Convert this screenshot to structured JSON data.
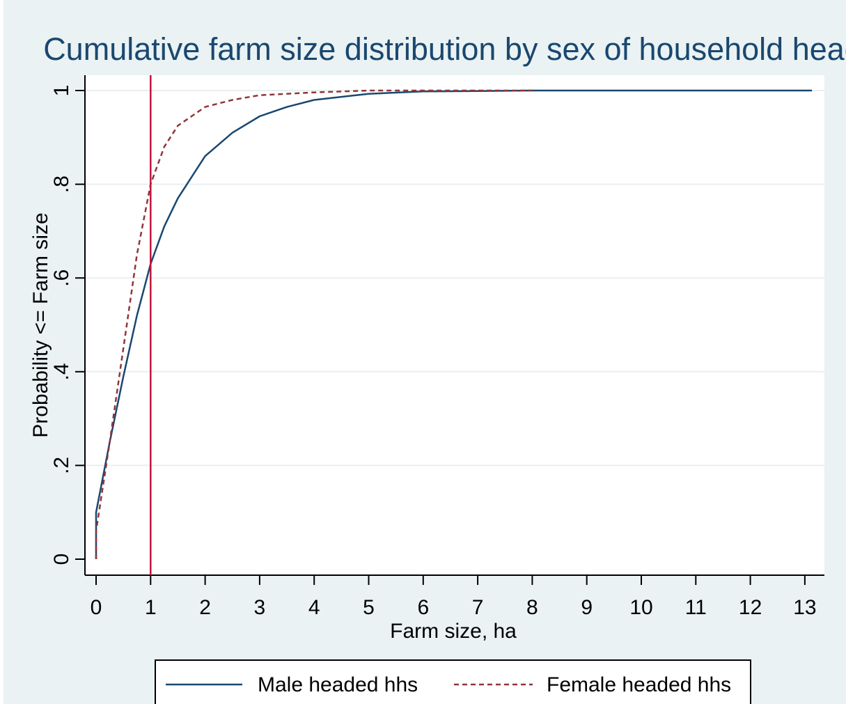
{
  "chart_data": {
    "type": "line",
    "title": "Cumulative farm size distribution by sex of household head",
    "xlabel": "Farm size, ha",
    "ylabel": "Probability <= Farm size",
    "xlim": [
      0,
      13
    ],
    "ylim": [
      0,
      1
    ],
    "x_ticks": [
      "0",
      "1",
      "2",
      "3",
      "4",
      "5",
      "6",
      "7",
      "8",
      "9",
      "10",
      "11",
      "12",
      "13"
    ],
    "y_ticks": [
      "0",
      ".2",
      ".4",
      ".6",
      ".8",
      "1"
    ],
    "grid": true,
    "legend_position": "bottom",
    "reference_line": {
      "x": 1,
      "color": "#c0143c"
    },
    "series": [
      {
        "name": "Male headed hhs",
        "color": "#1a476f",
        "dash": "solid",
        "x": [
          0,
          0,
          0.25,
          0.5,
          0.75,
          1.0,
          1.25,
          1.5,
          2.0,
          2.5,
          3.0,
          3.5,
          4.0,
          5.0,
          6.0,
          7.0,
          8.0,
          10.0,
          13.13
        ],
        "y": [
          0.0,
          0.1,
          0.25,
          0.39,
          0.52,
          0.63,
          0.71,
          0.77,
          0.86,
          0.91,
          0.945,
          0.965,
          0.98,
          0.993,
          0.998,
          0.999,
          1.0,
          1.0,
          1.0
        ]
      },
      {
        "name": "Female headed hhs",
        "color": "#90353b",
        "dash": "dashed",
        "x": [
          0,
          0,
          0.25,
          0.5,
          0.75,
          1.0,
          1.25,
          1.5,
          2.0,
          2.5,
          3.0,
          4.0,
          5.0,
          6.0,
          7.0,
          8.0
        ],
        "y": [
          0.0,
          0.06,
          0.25,
          0.45,
          0.65,
          0.8,
          0.88,
          0.925,
          0.965,
          0.98,
          0.99,
          0.996,
          1.0,
          1.0,
          1.0,
          1.0
        ]
      }
    ]
  }
}
